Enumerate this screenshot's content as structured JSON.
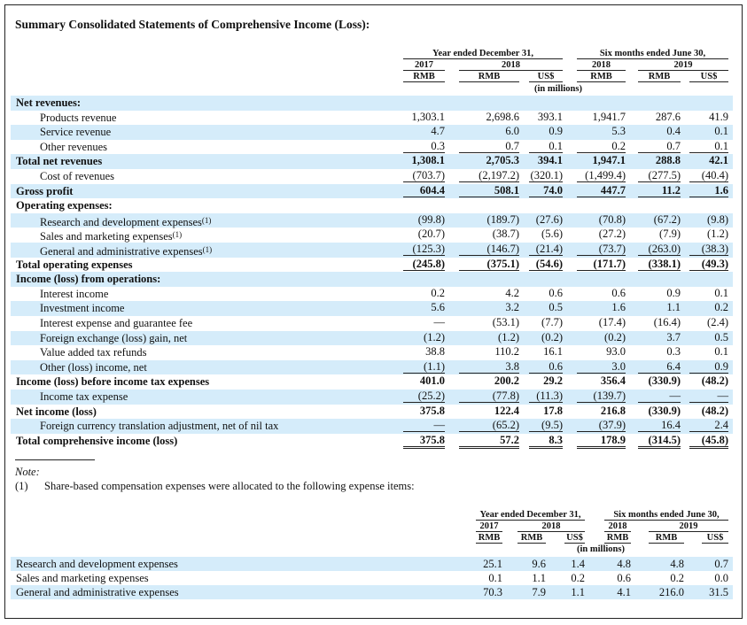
{
  "title": "Summary Consolidated Statements of Comprehensive Income (Loss):",
  "header": {
    "year_ended": "Year ended December 31,",
    "six_months": "Six months ended June 30,",
    "y2017": "2017",
    "y2018": "2018",
    "h2018": "2018",
    "h2019": "2019",
    "rmb": "RMB",
    "usd": "US$",
    "in_millions": "(in millions)"
  },
  "rows": [
    {
      "label": "Net revenues:",
      "bold": true,
      "values": []
    },
    {
      "label": "Products revenue",
      "indent": true,
      "values": [
        "1,303.1",
        "2,698.6",
        "393.1",
        "1,941.7",
        "287.6",
        "41.9"
      ]
    },
    {
      "label": "Service revenue",
      "indent": true,
      "values": [
        "4.7",
        "6.0",
        "0.9",
        "5.3",
        "0.4",
        "0.1"
      ]
    },
    {
      "label": "Other revenues",
      "indent": true,
      "values": [
        "0.3",
        "0.7",
        "0.1",
        "0.2",
        "0.7",
        "0.1"
      ],
      "line": "u"
    },
    {
      "label": "Total net revenues",
      "bold": true,
      "values": [
        "1,308.1",
        "2,705.3",
        "394.1",
        "1,947.1",
        "288.8",
        "42.1"
      ]
    },
    {
      "label": "Cost of revenues",
      "indent": true,
      "values": [
        "(703.7)",
        "(2,197.2)",
        "(320.1)",
        "(1,499.4)",
        "(277.5)",
        "(40.4)"
      ],
      "line": "u"
    },
    {
      "label": "Gross profit",
      "bold": true,
      "values": [
        "604.4",
        "508.1",
        "74.0",
        "447.7",
        "11.2",
        "1.6"
      ],
      "line": "u"
    },
    {
      "label": "Operating expenses:",
      "bold": true,
      "values": []
    },
    {
      "label": "Research and development expenses",
      "note": "(1)",
      "indent": true,
      "values": [
        "(99.8)",
        "(189.7)",
        "(27.6)",
        "(70.8)",
        "(67.2)",
        "(9.8)"
      ]
    },
    {
      "label": "Sales and marketing expenses",
      "note": "(1)",
      "indent": true,
      "values": [
        "(20.7)",
        "(38.7)",
        "(5.6)",
        "(27.2)",
        "(7.9)",
        "(1.2)"
      ]
    },
    {
      "label": "General and administrative expenses",
      "note": "(1)",
      "indent": true,
      "values": [
        "(125.3)",
        "(146.7)",
        "(21.4)",
        "(73.7)",
        "(263.0)",
        "(38.3)"
      ],
      "line": "u"
    },
    {
      "label": "Total operating expenses",
      "bold": true,
      "values": [
        "(245.8)",
        "(375.1)",
        "(54.6)",
        "(171.7)",
        "(338.1)",
        "(49.3)"
      ],
      "line": "u"
    },
    {
      "label": "Income (loss) from operations:",
      "bold": true,
      "values": []
    },
    {
      "label": "Interest income",
      "indent": true,
      "values": [
        "0.2",
        "4.2",
        "0.6",
        "0.6",
        "0.9",
        "0.1"
      ]
    },
    {
      "label": "Investment income",
      "indent": true,
      "values": [
        "5.6",
        "3.2",
        "0.5",
        "1.6",
        "1.1",
        "0.2"
      ]
    },
    {
      "label": "Interest expense and guarantee fee",
      "indent": true,
      "values": [
        "—",
        "(53.1)",
        "(7.7)",
        "(17.4)",
        "(16.4)",
        "(2.4)"
      ]
    },
    {
      "label": "Foreign exchange (loss) gain, net",
      "indent": true,
      "values": [
        "(1.2)",
        "(1.2)",
        "(0.2)",
        "(0.2)",
        "3.7",
        "0.5"
      ]
    },
    {
      "label": "Value added tax refunds",
      "indent": true,
      "values": [
        "38.8",
        "110.2",
        "16.1",
        "93.0",
        "0.3",
        "0.1"
      ]
    },
    {
      "label": "Other (loss) income, net",
      "indent": true,
      "values": [
        "(1.1)",
        "3.8",
        "0.6",
        "3.0",
        "6.4",
        "0.9"
      ],
      "line": "u"
    },
    {
      "label": "Income (loss) before income tax expenses",
      "bold": true,
      "values": [
        "401.0",
        "200.2",
        "29.2",
        "356.4",
        "(330.9)",
        "(48.2)"
      ]
    },
    {
      "label": "Income tax expense",
      "indent": true,
      "values": [
        "(25.2)",
        "(77.8)",
        "(11.3)",
        "(139.7)",
        "—",
        "—"
      ],
      "line": "u"
    },
    {
      "label": "Net income (loss)",
      "bold": true,
      "values": [
        "375.8",
        "122.4",
        "17.8",
        "216.8",
        "(330.9)",
        "(48.2)"
      ]
    },
    {
      "label": "Foreign currency translation adjustment, net of nil tax",
      "indent": true,
      "values": [
        "—",
        "(65.2)",
        "(9.5)",
        "(37.9)",
        "16.4",
        "2.4"
      ],
      "line": "u"
    },
    {
      "label": "Total comprehensive income (loss)",
      "bold": true,
      "values": [
        "375.8",
        "57.2",
        "8.3",
        "178.9",
        "(314.5)",
        "(45.8)"
      ],
      "line": "d"
    }
  ],
  "note": {
    "heading": "Note:",
    "num": "(1)",
    "text": "Share-based compensation expenses were allocated to the following expense items:"
  },
  "sbc_rows": [
    {
      "label": "Research and development expenses",
      "values": [
        "25.1",
        "9.6",
        "1.4",
        "4.8",
        "4.8",
        "0.7"
      ]
    },
    {
      "label": "Sales and marketing expenses",
      "values": [
        "0.1",
        "1.1",
        "0.2",
        "0.6",
        "0.2",
        "0.0"
      ]
    },
    {
      "label": "General and administrative expenses",
      "values": [
        "70.3",
        "7.9",
        "1.1",
        "4.1",
        "216.0",
        "31.5"
      ]
    }
  ]
}
